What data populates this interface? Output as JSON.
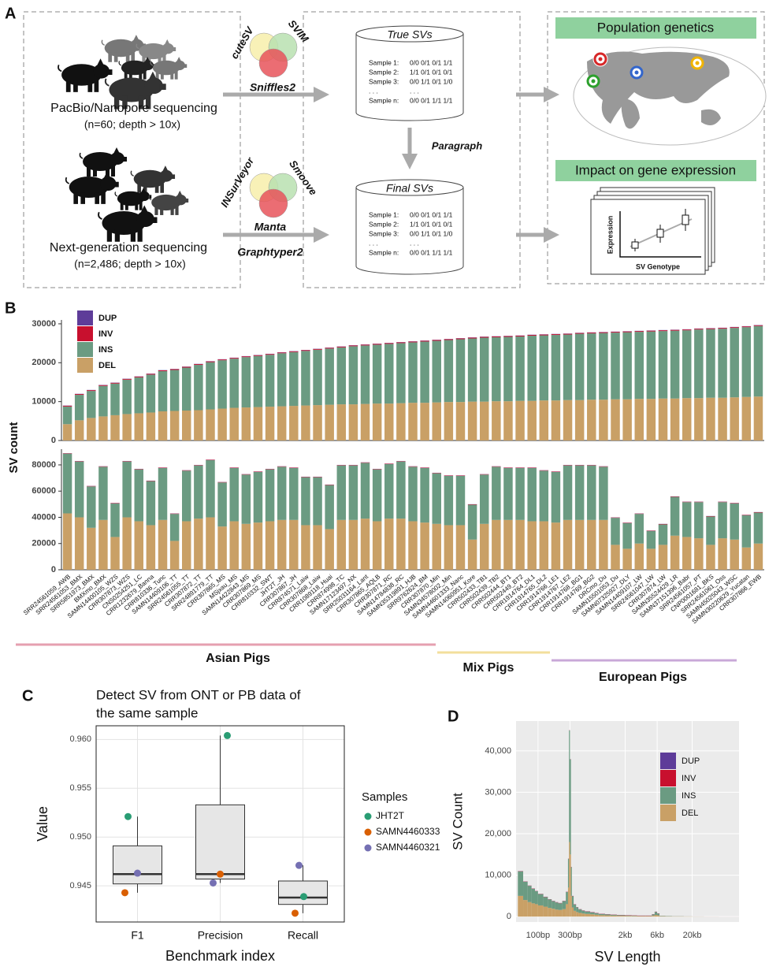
{
  "panel_labels": [
    "A",
    "B",
    "C",
    "D"
  ],
  "panel_a": {
    "long_read": {
      "title": "PacBio/Nanopore sequencing",
      "detail": "(n=60; depth > 10x)",
      "callers": [
        "cuteSV",
        "SVIM",
        "Sniffles2"
      ]
    },
    "short_read": {
      "title": "Next-generation sequencing",
      "detail": "(n=2,486; depth > 10x)",
      "callers": [
        "INSurVeyor",
        "Smoove",
        "Manta"
      ],
      "genotyper": "Graphtyper2"
    },
    "true_svs": {
      "title": "True SVs",
      "rows": [
        [
          "Sample 1:",
          "0/0  0/1  0/1  1/1"
        ],
        [
          "Sample 2:",
          "1/1  0/1  0/1  0/1"
        ],
        [
          "Sample 3:",
          "0/0  1/1  0/1  1/0"
        ],
        [
          ". . .",
          ". . ."
        ],
        [
          "Sample n:",
          "0/0  0/1  1/1  1/1"
        ]
      ]
    },
    "genotyping": "Paragraph",
    "final_svs": {
      "title": "Final SVs",
      "rows": [
        [
          "Sample 1:",
          "0/0  0/1  0/1  1/1"
        ],
        [
          "Sample 2:",
          "1/1  0/1  0/1  0/1"
        ],
        [
          "Sample 3:",
          "0/0  1/1  0/1  1/0"
        ],
        [
          ". . .",
          ". . ."
        ],
        [
          "Sample n:",
          "0/0  0/1  1/1  1/1"
        ]
      ]
    },
    "applications": {
      "population": "Population genetics",
      "expression": {
        "title": "Impact on gene expression",
        "y_label": "Expression",
        "x_label": "SV Genotype"
      }
    }
  },
  "panel_b": {
    "y_label": "SV count",
    "groups": [
      "Asian Pigs",
      "Mix Pigs",
      "European Pigs"
    ]
  },
  "chart_data": [
    {
      "type": "bar",
      "stacked": true,
      "legend": "top-left",
      "ylim": [
        0,
        31000
      ],
      "yticks": [
        0,
        10000,
        20000,
        30000
      ],
      "series": [
        {
          "name": "DEL",
          "color": "#c9a066",
          "values": [
            4200,
            5200,
            5800,
            6200,
            6500,
            6800,
            7000,
            7200,
            7500,
            7600,
            7700,
            7800,
            8000,
            8200,
            8400,
            8500,
            8600,
            8700,
            8800,
            8900,
            9000,
            9100,
            9200,
            9300,
            9300,
            9400,
            9500,
            9500,
            9600,
            9700,
            9700,
            9800,
            9900,
            9900,
            10000,
            10000,
            10100,
            10100,
            10200,
            10200,
            10300,
            10300,
            10400,
            10400,
            10500,
            10500,
            10600,
            10600,
            10700,
            10700,
            10800,
            10800,
            10900,
            10900,
            11000,
            11000,
            11100,
            11200,
            11300
          ]
        },
        {
          "name": "INS",
          "color": "#6b9b82",
          "values": [
            4540,
            6540,
            6940,
            7840,
            8140,
            8840,
            9240,
            9740,
            10340,
            10540,
            11040,
            11640,
            12140,
            12440,
            12640,
            12940,
            13140,
            13340,
            13640,
            13840,
            14040,
            14240,
            14440,
            14640,
            14940,
            15040,
            15140,
            15340,
            15440,
            15540,
            15740,
            15840,
            15940,
            16140,
            16240,
            16440,
            16440,
            16540,
            16540,
            16740,
            16740,
            16840,
            16840,
            17040,
            17040,
            17140,
            17140,
            17240,
            17240,
            17340,
            17340,
            17440,
            17440,
            17640,
            17640,
            17740,
            17840,
            17940,
            18140
          ]
        },
        {
          "name": "INV",
          "color": "#c8102e",
          "values": [
            200,
            200,
            200,
            200,
            200,
            200,
            200,
            200,
            200,
            200,
            200,
            200,
            200,
            200,
            200,
            200,
            200,
            200,
            200,
            200,
            200,
            200,
            200,
            200,
            200,
            200,
            200,
            200,
            200,
            200,
            200,
            200,
            200,
            200,
            200,
            200,
            200,
            200,
            200,
            200,
            200,
            200,
            200,
            200,
            200,
            200,
            200,
            200,
            200,
            200,
            200,
            200,
            200,
            200,
            200,
            200,
            200,
            200,
            200
          ]
        },
        {
          "name": "DUP",
          "color": "#5e3c99",
          "values": [
            60,
            60,
            60,
            60,
            60,
            60,
            60,
            60,
            60,
            60,
            60,
            60,
            60,
            60,
            60,
            60,
            60,
            60,
            60,
            60,
            60,
            60,
            60,
            60,
            60,
            60,
            60,
            60,
            60,
            60,
            60,
            60,
            60,
            60,
            60,
            60,
            60,
            60,
            60,
            60,
            60,
            60,
            60,
            60,
            60,
            60,
            60,
            60,
            60,
            60,
            60,
            60,
            60,
            60,
            60,
            60,
            60,
            60,
            60
          ]
        }
      ]
    },
    {
      "type": "bar",
      "stacked": true,
      "ylim": [
        0,
        92000
      ],
      "yticks": [
        0,
        20000,
        40000,
        60000,
        80000
      ],
      "categories": [
        "SRR24561059_AWB",
        "SRR24561053_BMX",
        "SRR5851973_BMX",
        "BMXmo_BMX",
        "SAMN14400105_WZS",
        "CRR307873_WZS",
        "CNS0254251_LC",
        "CRR1232679_Banna",
        "CRR810336_Tunc",
        "SAMN14409106_TT",
        "SRR24561055_TT",
        "CRR307872_TT",
        "SRR24891779_TT",
        "CRR307865_MS",
        "MSjxau_MS",
        "SAMN14422843_MS",
        "CRR307869_MS",
        "CRR810332_SWT",
        "JHT2T_JH",
        "CRR307867_JH",
        "CRR874571_Laiw",
        "CRR307868_Laiw",
        "CRR1089118_Huai",
        "CRR874998_TC",
        "SAMN17123497_NX",
        "SRR25031164_Lant",
        "CRR307865_AQLB",
        "CRR307871_RC",
        "SAMN14784838_RC",
        "SAMN35319891_HJB",
        "SRR9762624_BM",
        "CRR307870_Min",
        "SAMN34578002_Min",
        "SAMN44601333_Nanc",
        "SAMN14060951_Kore",
        "CRR502433_TB1",
        "CRR502439_TB2",
        "CRR502444_BT1",
        "CRR502449_BT2",
        "CRR1914764_DL1",
        "CRR1914765_DL2",
        "CRR1914766_LE1",
        "CRR1914767_LE2",
        "CRR1914768_BG1",
        "CRR1914769_BG2",
        "DRCmo_Du",
        "SAMN15501053_Du",
        "SAMN07325927_DLY",
        "SAMN14409107_LW",
        "SRR24561047_LW",
        "CRR307874_LW",
        "SAMN35524429_LR",
        "SAMN37151396_Babr",
        "SRR24561057_PT",
        "CNP0001681_BKS",
        "SRR24561061_Oss",
        "SAMN45025043_WSC",
        "SAMN30220629_Yucatan",
        "CRR307866_EWB"
      ],
      "series": [
        {
          "color": "#c9a066",
          "values": [
            43000,
            40000,
            32000,
            38000,
            25000,
            40000,
            37000,
            34000,
            38000,
            22000,
            37000,
            39000,
            40000,
            33000,
            37000,
            35000,
            36000,
            37000,
            38000,
            38000,
            34000,
            34000,
            31000,
            38000,
            38000,
            39000,
            37000,
            39000,
            39000,
            37000,
            36000,
            35000,
            34000,
            34000,
            23000,
            35000,
            38000,
            38000,
            38000,
            37000,
            37000,
            36000,
            38000,
            38000,
            38000,
            38000,
            19000,
            16000,
            20000,
            16000,
            19000,
            26000,
            25000,
            24000,
            19000,
            24000,
            23000,
            17000,
            20000
          ]
        },
        {
          "color": "#6b9b82",
          "values": [
            45600,
            42600,
            31600,
            40600,
            25600,
            42600,
            39600,
            33600,
            39600,
            20600,
            38600,
            40600,
            43600,
            33600,
            40600,
            37600,
            38600,
            39600,
            40600,
            39600,
            36600,
            36600,
            33600,
            41600,
            41600,
            42600,
            39600,
            41600,
            43600,
            41600,
            41600,
            38600,
            37600,
            37600,
            26600,
            37600,
            40600,
            39600,
            39600,
            40600,
            38600,
            38600,
            41600,
            41600,
            41600,
            40600,
            20600,
            19600,
            22600,
            13600,
            15600,
            29600,
            26600,
            27600,
            21600,
            27600,
            27600,
            24600,
            23600
          ]
        },
        {
          "color": "#c8102e",
          "values": [
            300,
            300,
            300,
            300,
            300,
            300,
            300,
            300,
            300,
            300,
            300,
            300,
            300,
            300,
            300,
            300,
            300,
            300,
            300,
            300,
            300,
            300,
            300,
            300,
            300,
            300,
            300,
            300,
            300,
            300,
            300,
            300,
            300,
            300,
            300,
            300,
            300,
            300,
            300,
            300,
            300,
            300,
            300,
            300,
            300,
            300,
            300,
            300,
            300,
            300,
            300,
            300,
            300,
            300,
            300,
            300,
            300,
            300,
            300
          ]
        },
        {
          "color": "#5e3c99",
          "values": [
            100,
            100,
            100,
            100,
            100,
            100,
            100,
            100,
            100,
            100,
            100,
            100,
            100,
            100,
            100,
            100,
            100,
            100,
            100,
            100,
            100,
            100,
            100,
            100,
            100,
            100,
            100,
            100,
            100,
            100,
            100,
            100,
            100,
            100,
            100,
            100,
            100,
            100,
            100,
            100,
            100,
            100,
            100,
            100,
            100,
            100,
            100,
            100,
            100,
            100,
            100,
            100,
            100,
            100,
            100,
            100,
            100,
            100,
            100
          ]
        }
      ]
    },
    {
      "type": "box",
      "title": [
        "Detect SV from ONT or PB data of",
        "the same sample"
      ],
      "x_label": "Benchmark index",
      "y_label": "Value",
      "legend_title": "Samples",
      "grid": true,
      "categories": [
        "F1",
        "Precision",
        "Recall"
      ],
      "ylim": [
        0.9413,
        0.9614
      ],
      "yticks": [
        0.945,
        {
          "value": 0.95,
          "label": "0.950"
        },
        0.955,
        {
          "value": 0.96,
          "label": "0.960"
        }
      ],
      "boxes": [
        {
          "min": 0.9443,
          "q1": 0.9452,
          "median": 0.9462,
          "q3": 0.9491,
          "max": 0.9521
        },
        {
          "min": 0.9453,
          "q1": 0.9457,
          "median": 0.9462,
          "q3": 0.9533,
          "max": 0.9604
        },
        {
          "min": 0.9422,
          "q1": 0.9431,
          "median": 0.9438,
          "q3": 0.9455,
          "max": 0.9471
        }
      ],
      "series": [
        {
          "name": "JHT2T",
          "color": "#2a9d74",
          "values": [
            0.9521,
            0.9604,
            0.9439
          ]
        },
        {
          "name": "SAMN4460333",
          "color": "#d95f02",
          "values": [
            0.9443,
            0.9462,
            0.9422
          ]
        },
        {
          "name": "SAMN4460321",
          "color": "#7570b3",
          "values": [
            0.9463,
            0.9453,
            0.9471
          ]
        }
      ]
    },
    {
      "type": "histogram",
      "stacked": true,
      "x_label": "SV Length",
      "y_label": "SV Count",
      "xscale": "log",
      "grid": true,
      "legend": "top-right",
      "xlim": [
        47,
        100000
      ],
      "xticks": [
        {
          "value": 100,
          "label": "100bp"
        },
        {
          "value": 300,
          "label": "300bp"
        },
        {
          "value": 2000,
          "label": "2kb"
        },
        {
          "value": 6000,
          "label": "6kb"
        },
        {
          "value": 20000,
          "label": "20kb"
        }
      ],
      "ylim": [
        -1300,
        47200
      ],
      "yticks": [
        0,
        {
          "value": 10000,
          "label": "10,000"
        },
        {
          "value": 20000,
          "label": "20,000"
        },
        {
          "value": 30000,
          "label": "30,000"
        },
        {
          "value": 40000,
          "label": "40,000"
        }
      ],
      "bins": [
        50,
        60,
        70,
        80,
        90,
        100,
        120,
        140,
        160,
        180,
        200,
        230,
        260,
        280,
        290,
        300,
        310,
        320,
        340,
        370,
        400,
        450,
        500,
        600,
        700,
        800,
        1000,
        1200,
        1500,
        2000,
        2500,
        3000,
        4000,
        5000,
        5500,
        6000,
        6500,
        8000,
        10000,
        15000,
        20000,
        30000,
        50000,
        100000
      ],
      "series": [
        {
          "name": "DEL",
          "color": "#c9a066",
          "values": [
            5000,
            4000,
            3500,
            3200,
            3000,
            2700,
            2400,
            2100,
            1900,
            1700,
            1600,
            1800,
            3000,
            7000,
            18000,
            15000,
            5000,
            2200,
            1400,
            1100,
            900,
            750,
            650,
            550,
            450,
            350,
            300,
            250,
            200,
            170,
            150,
            120,
            120,
            250,
            400,
            300,
            100,
            70,
            50,
            30,
            20,
            10,
            3
          ]
        },
        {
          "name": "INS",
          "color": "#6b9b82",
          "values": [
            5930,
            4430,
            3930,
            3530,
            3130,
            2730,
            2330,
            2030,
            1830,
            1730,
            1630,
            1930,
            2930,
            6930,
            26930,
            22930,
            6930,
            2730,
            1530,
            1130,
            830,
            680,
            580,
            480,
            380,
            280,
            230,
            180,
            130,
            110,
            80,
            60,
            60,
            280,
            730,
            430,
            93,
            73,
            43,
            23,
            13,
            3,
            0
          ]
        },
        {
          "name": "INV",
          "color": "#c8102e",
          "values": [
            50,
            50,
            50,
            50,
            50,
            50,
            50,
            50,
            50,
            50,
            50,
            50,
            50,
            50,
            50,
            50,
            50,
            50,
            50,
            50,
            50,
            50,
            50,
            50,
            50,
            50,
            50,
            50,
            50,
            50,
            50,
            50,
            50,
            50,
            50,
            50,
            5,
            5,
            5,
            5,
            5,
            5,
            5
          ]
        },
        {
          "name": "DUP",
          "color": "#5e3c99",
          "values": [
            20,
            20,
            20,
            20,
            20,
            20,
            20,
            20,
            20,
            20,
            20,
            20,
            20,
            20,
            20,
            20,
            20,
            20,
            20,
            20,
            20,
            20,
            20,
            20,
            20,
            20,
            20,
            20,
            20,
            20,
            20,
            20,
            20,
            20,
            20,
            20,
            2,
            2,
            2,
            2,
            2,
            2,
            2
          ]
        }
      ]
    }
  ]
}
